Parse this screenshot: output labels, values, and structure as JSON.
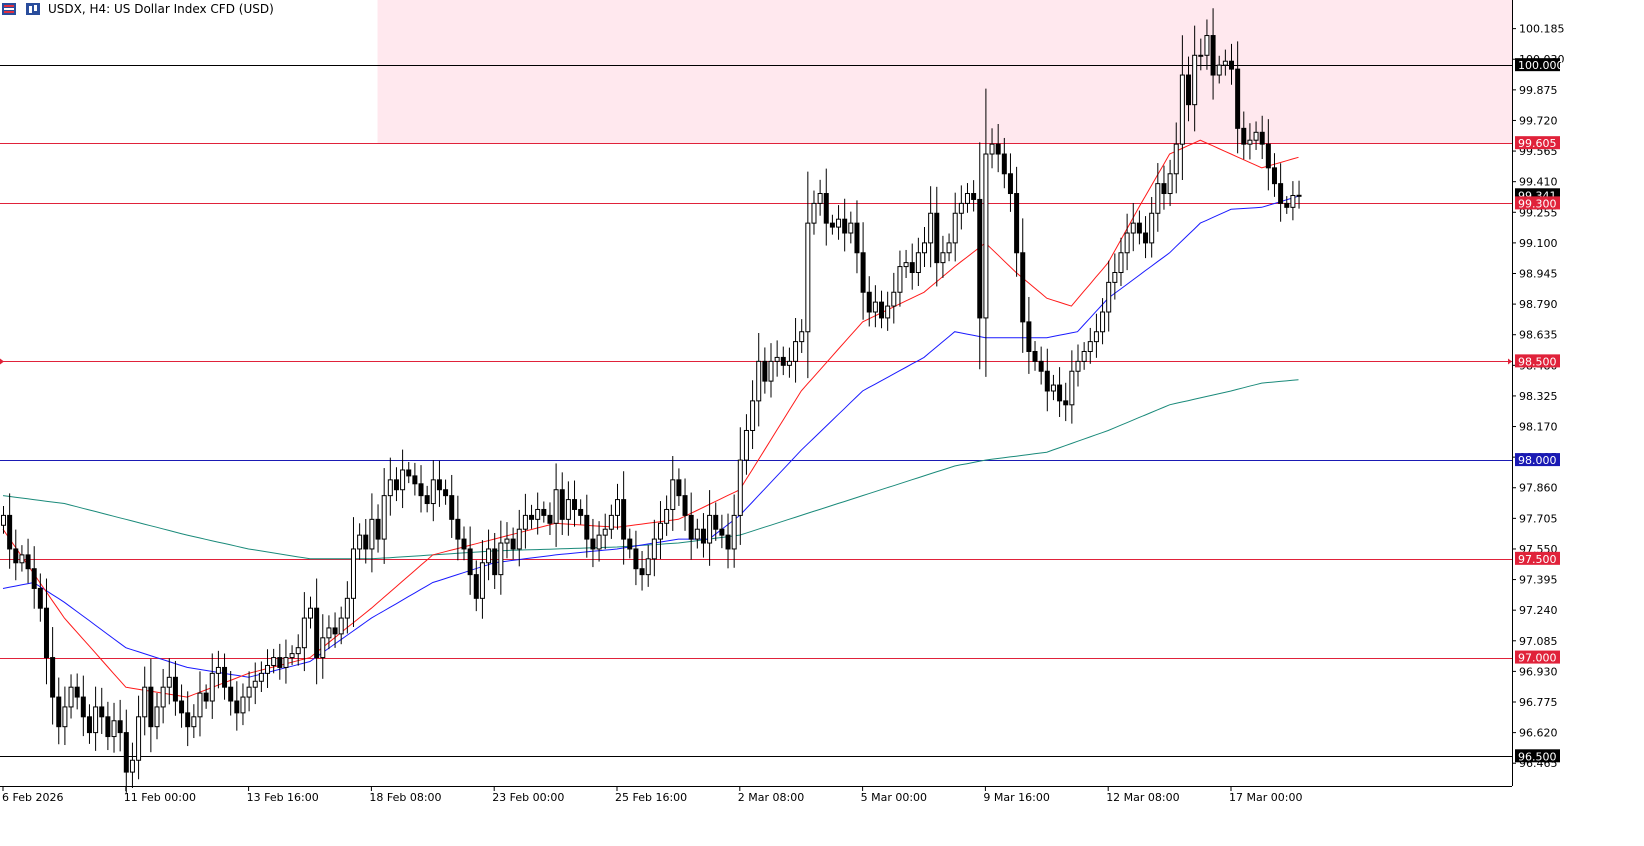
{
  "header": {
    "title": "USDX, H4:  US Dollar Index CFD (USD)",
    "icons": [
      "chart-menu-icon",
      "candles-icon"
    ]
  },
  "colors": {
    "background": "#ffffff",
    "bull_body": "#ffffff",
    "bear_body": "#000000",
    "candle_outline": "#000000",
    "zone_fill": "#ffe8ee",
    "red_level": "#e0223a",
    "blue_level": "#1a1ab4",
    "black_level": "#000000",
    "ma_fast": "#ff1a1a",
    "ma_mid": "#1a1aff",
    "ma_slow": "#1a8a7a"
  },
  "chart_data": {
    "type": "candlestick",
    "symbol": "USDX",
    "timeframe": "H4",
    "ylim": [
      96.38,
      100.33
    ],
    "y_ticks": [
      100.185,
      100.03,
      99.875,
      99.72,
      99.565,
      99.41,
      99.255,
      99.1,
      98.945,
      98.79,
      98.635,
      98.48,
      98.325,
      98.17,
      98.015,
      97.86,
      97.705,
      97.55,
      97.395,
      97.24,
      97.085,
      96.93,
      96.775,
      96.62,
      96.465
    ],
    "x_labels": [
      {
        "label": "6 Feb 2026",
        "bar": 0
      },
      {
        "label": "11 Feb 00:00",
        "bar": 20
      },
      {
        "label": "13 Feb 16:00",
        "bar": 40
      },
      {
        "label": "18 Feb 08:00",
        "bar": 60
      },
      {
        "label": "23 Feb 00:00",
        "bar": 80
      },
      {
        "label": "25 Feb 16:00",
        "bar": 100
      },
      {
        "label": "2 Mar 08:00",
        "bar": 120
      },
      {
        "label": "5 Mar 00:00",
        "bar": 140
      },
      {
        "label": "9 Mar 16:00",
        "bar": 160
      },
      {
        "label": "12 Mar 08:00",
        "bar": 180
      },
      {
        "label": "17 Mar 00:00",
        "bar": 200
      }
    ],
    "last_price": "99.341",
    "zone": {
      "from_bar": 61,
      "y_low": 99.605,
      "y_high": 100.33
    },
    "levels": [
      {
        "value": 100.0,
        "label": "100.000",
        "style": "black"
      },
      {
        "value": 99.605,
        "label": "99.605",
        "style": "red"
      },
      {
        "value": 99.3,
        "label": "99.300",
        "style": "red"
      },
      {
        "value": 98.5,
        "label": "98.500",
        "style": "red",
        "marker": true
      },
      {
        "value": 98.0,
        "label": "98.000",
        "style": "blue"
      },
      {
        "value": 97.5,
        "label": "97.500",
        "style": "red"
      },
      {
        "value": 97.0,
        "label": "97.000",
        "style": "red"
      },
      {
        "value": 96.5,
        "label": "96.500",
        "style": "black"
      }
    ],
    "candles_close": [
      97.72,
      97.55,
      97.48,
      97.52,
      97.45,
      97.35,
      97.25,
      97.0,
      96.8,
      96.65,
      96.75,
      96.85,
      96.8,
      96.7,
      96.62,
      96.75,
      96.7,
      96.6,
      96.68,
      96.62,
      96.42,
      96.48,
      96.7,
      96.85,
      96.65,
      96.75,
      96.85,
      96.9,
      96.78,
      96.72,
      96.65,
      96.7,
      96.82,
      96.78,
      96.92,
      96.95,
      96.85,
      96.78,
      96.72,
      96.8,
      96.85,
      96.88,
      96.92,
      96.96,
      97.0,
      96.95,
      97.0,
      97.02,
      97.05,
      97.2,
      97.25,
      97.0,
      97.1,
      97.15,
      97.12,
      97.2,
      97.3,
      97.55,
      97.62,
      97.55,
      97.7,
      97.6,
      97.82,
      97.9,
      97.85,
      97.95,
      97.92,
      97.88,
      97.82,
      97.78,
      97.9,
      97.85,
      97.82,
      97.7,
      97.6,
      97.55,
      97.42,
      97.3,
      97.48,
      97.55,
      97.42,
      97.58,
      97.6,
      97.55,
      97.65,
      97.72,
      97.7,
      97.75,
      97.72,
      97.68,
      97.85,
      97.7,
      97.8,
      97.75,
      97.72,
      97.6,
      97.55,
      97.62,
      97.65,
      97.72,
      97.8,
      97.6,
      97.55,
      97.45,
      97.42,
      97.5,
      97.6,
      97.68,
      97.75,
      97.9,
      97.82,
      97.72,
      97.6,
      97.65,
      97.58,
      97.72,
      97.65,
      97.62,
      97.55,
      97.72,
      98.0,
      98.15,
      98.3,
      98.5,
      98.4,
      98.5,
      98.52,
      98.48,
      98.5,
      98.6,
      98.65,
      99.2,
      99.3,
      99.35,
      99.2,
      99.18,
      99.22,
      99.15,
      99.2,
      99.05,
      98.85,
      98.75,
      98.8,
      98.72,
      98.78,
      98.85,
      98.98,
      99.0,
      98.95,
      99.05,
      99.1,
      99.25,
      99.0,
      99.05,
      99.1,
      99.25,
      99.3,
      99.35,
      99.32,
      98.72,
      99.55,
      99.6,
      99.55,
      99.45,
      99.35,
      99.05,
      98.7,
      98.55,
      98.5,
      98.45,
      98.35,
      98.38,
      98.3,
      98.28,
      98.45,
      98.5,
      98.55,
      98.6,
      98.65,
      98.75,
      98.9,
      98.95,
      99.05,
      99.15,
      99.2,
      99.15,
      99.1,
      99.25,
      99.4,
      99.35,
      99.45,
      99.6,
      99.95,
      99.8,
      100.05,
      100.05,
      100.15,
      99.95,
      100.0,
      100.02,
      99.98,
      99.68,
      99.6,
      99.62,
      99.66,
      99.6,
      99.48,
      99.4,
      99.3,
      99.28,
      99.34,
      99.341
    ],
    "ma_fast_anchors": [
      [
        0,
        97.65
      ],
      [
        10,
        97.2
      ],
      [
        20,
        96.85
      ],
      [
        30,
        96.8
      ],
      [
        40,
        96.92
      ],
      [
        50,
        97.0
      ],
      [
        60,
        97.25
      ],
      [
        70,
        97.52
      ],
      [
        80,
        97.6
      ],
      [
        90,
        97.68
      ],
      [
        100,
        97.66
      ],
      [
        110,
        97.7
      ],
      [
        120,
        97.85
      ],
      [
        130,
        98.35
      ],
      [
        140,
        98.7
      ],
      [
        150,
        98.85
      ],
      [
        155,
        98.98
      ],
      [
        160,
        99.1
      ],
      [
        165,
        98.95
      ],
      [
        170,
        98.82
      ],
      [
        174,
        98.78
      ],
      [
        180,
        99.0
      ],
      [
        185,
        99.28
      ],
      [
        190,
        99.55
      ],
      [
        195,
        99.62
      ],
      [
        200,
        99.55
      ],
      [
        205,
        99.48
      ]
    ],
    "ma_mid_anchors": [
      [
        0,
        97.35
      ],
      [
        5,
        97.38
      ],
      [
        10,
        97.28
      ],
      [
        20,
        97.05
      ],
      [
        30,
        96.95
      ],
      [
        40,
        96.9
      ],
      [
        50,
        96.98
      ],
      [
        60,
        97.2
      ],
      [
        70,
        97.38
      ],
      [
        80,
        97.48
      ],
      [
        90,
        97.52
      ],
      [
        100,
        97.55
      ],
      [
        110,
        97.6
      ],
      [
        115,
        97.6
      ],
      [
        120,
        97.72
      ],
      [
        130,
        98.05
      ],
      [
        140,
        98.35
      ],
      [
        150,
        98.52
      ],
      [
        155,
        98.65
      ],
      [
        160,
        98.62
      ],
      [
        170,
        98.62
      ],
      [
        175,
        98.65
      ],
      [
        180,
        98.82
      ],
      [
        190,
        99.05
      ],
      [
        195,
        99.2
      ],
      [
        200,
        99.27
      ],
      [
        205,
        99.28
      ]
    ],
    "ma_slow_anchors": [
      [
        0,
        97.82
      ],
      [
        10,
        97.78
      ],
      [
        20,
        97.7
      ],
      [
        30,
        97.62
      ],
      [
        40,
        97.55
      ],
      [
        50,
        97.5
      ],
      [
        60,
        97.5
      ],
      [
        70,
        97.52
      ],
      [
        80,
        97.54
      ],
      [
        90,
        97.55
      ],
      [
        100,
        97.56
      ],
      [
        110,
        97.58
      ],
      [
        120,
        97.62
      ],
      [
        130,
        97.72
      ],
      [
        140,
        97.82
      ],
      [
        150,
        97.92
      ],
      [
        155,
        97.97
      ],
      [
        160,
        98.0
      ],
      [
        170,
        98.04
      ],
      [
        180,
        98.15
      ],
      [
        190,
        98.28
      ],
      [
        200,
        98.35
      ],
      [
        205,
        98.39
      ]
    ]
  }
}
